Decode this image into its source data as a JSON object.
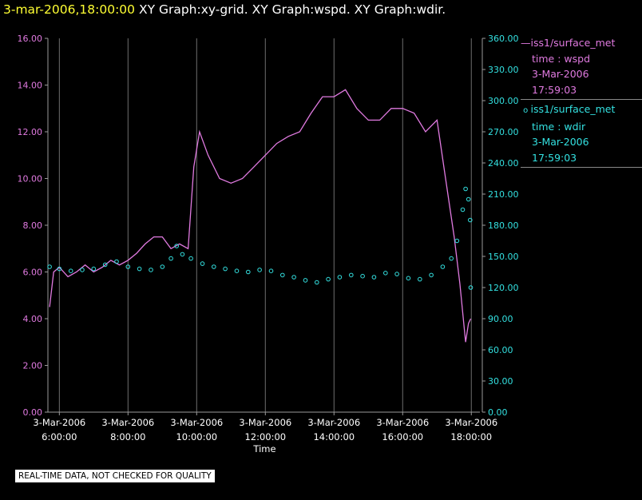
{
  "header": {
    "timestamp": "3-mar-2006,18:00:00",
    "title": "XY Graph:xy-grid.  XY Graph:wspd.  XY Graph:wdir."
  },
  "chart_data": {
    "type": "line",
    "xlabel": "Time",
    "x_range": [
      "3-Mar-2006 5:40:00",
      "3-Mar-2006 18:15:00"
    ],
    "x_ticks": [
      {
        "date": "3-Mar-2006",
        "time": "6:00:00"
      },
      {
        "date": "3-Mar-2006",
        "time": "8:00:00"
      },
      {
        "date": "3-Mar-2006",
        "time": "10:00:00"
      },
      {
        "date": "3-Mar-2006",
        "time": "12:00:00"
      },
      {
        "date": "3-Mar-2006",
        "time": "14:00:00"
      },
      {
        "date": "3-Mar-2006",
        "time": "16:00:00"
      },
      {
        "date": "3-Mar-2006",
        "time": "18:00:00"
      }
    ],
    "y_left": {
      "range": [
        0,
        16
      ],
      "ticks": [
        "0.00",
        "2.00",
        "4.00",
        "6.00",
        "8.00",
        "10.00",
        "12.00",
        "14.00",
        "16.00"
      ],
      "color": "#e07ae0"
    },
    "y_right": {
      "range": [
        0,
        360
      ],
      "ticks": [
        "0.00",
        "30.00",
        "60.00",
        "90.00",
        "120.00",
        "150.00",
        "180.00",
        "210.00",
        "240.00",
        "270.00",
        "300.00",
        "330.00",
        "360.00"
      ],
      "color": "#33e0e0"
    },
    "vertical_grid": true,
    "legend_position": "right",
    "series": [
      {
        "name": "iss1/surface_met",
        "field": "time : wspd",
        "date": "3-Mar-2006",
        "time": "17:59:03",
        "axis": "left",
        "style": "line",
        "color": "#e07ae0",
        "points": [
          [
            "5:43",
            4.5
          ],
          [
            "5:50",
            6.0
          ],
          [
            "6:00",
            6.2
          ],
          [
            "6:15",
            5.8
          ],
          [
            "6:30",
            6.0
          ],
          [
            "6:45",
            6.3
          ],
          [
            "7:00",
            6.0
          ],
          [
            "7:15",
            6.2
          ],
          [
            "7:30",
            6.5
          ],
          [
            "7:45",
            6.3
          ],
          [
            "8:00",
            6.5
          ],
          [
            "8:15",
            6.8
          ],
          [
            "8:30",
            7.2
          ],
          [
            "8:45",
            7.5
          ],
          [
            "9:00",
            7.5
          ],
          [
            "9:15",
            7.0
          ],
          [
            "9:30",
            7.2
          ],
          [
            "9:45",
            7.0
          ],
          [
            "9:55",
            10.5
          ],
          [
            "10:05",
            12.0
          ],
          [
            "10:20",
            11.0
          ],
          [
            "10:40",
            10.0
          ],
          [
            "11:00",
            9.8
          ],
          [
            "11:20",
            10.0
          ],
          [
            "11:40",
            10.5
          ],
          [
            "12:00",
            11.0
          ],
          [
            "12:20",
            11.5
          ],
          [
            "12:40",
            11.8
          ],
          [
            "13:00",
            12.0
          ],
          [
            "13:20",
            12.8
          ],
          [
            "13:40",
            13.5
          ],
          [
            "14:00",
            13.5
          ],
          [
            "14:20",
            13.8
          ],
          [
            "14:40",
            13.0
          ],
          [
            "15:00",
            12.5
          ],
          [
            "15:20",
            12.5
          ],
          [
            "15:40",
            13.0
          ],
          [
            "16:00",
            13.0
          ],
          [
            "16:20",
            12.8
          ],
          [
            "16:40",
            12.0
          ],
          [
            "17:00",
            12.5
          ],
          [
            "17:15",
            10.0
          ],
          [
            "17:30",
            7.5
          ],
          [
            "17:40",
            5.5
          ],
          [
            "17:50",
            3.0
          ],
          [
            "17:55",
            3.8
          ],
          [
            "17:59",
            4.0
          ]
        ]
      },
      {
        "name": "iss1/surface_met",
        "field": "time : wdir",
        "date": "3-Mar-2006",
        "time": "17:59:03",
        "axis": "right",
        "style": "scatter",
        "color": "#33e0e0",
        "points": [
          [
            "5:43",
            140
          ],
          [
            "6:00",
            138
          ],
          [
            "6:20",
            136
          ],
          [
            "6:40",
            137
          ],
          [
            "7:00",
            138
          ],
          [
            "7:20",
            142
          ],
          [
            "7:40",
            145
          ],
          [
            "8:00",
            140
          ],
          [
            "8:20",
            138
          ],
          [
            "8:40",
            137
          ],
          [
            "9:00",
            140
          ],
          [
            "9:15",
            148
          ],
          [
            "9:25",
            160
          ],
          [
            "9:35",
            152
          ],
          [
            "9:50",
            148
          ],
          [
            "10:10",
            143
          ],
          [
            "10:30",
            140
          ],
          [
            "10:50",
            138
          ],
          [
            "11:10",
            136
          ],
          [
            "11:30",
            135
          ],
          [
            "11:50",
            137
          ],
          [
            "12:10",
            136
          ],
          [
            "12:30",
            132
          ],
          [
            "12:50",
            130
          ],
          [
            "13:10",
            127
          ],
          [
            "13:30",
            125
          ],
          [
            "13:50",
            128
          ],
          [
            "14:10",
            130
          ],
          [
            "14:30",
            132
          ],
          [
            "14:50",
            131
          ],
          [
            "15:10",
            130
          ],
          [
            "15:30",
            134
          ],
          [
            "15:50",
            133
          ],
          [
            "16:10",
            129
          ],
          [
            "16:30",
            128
          ],
          [
            "16:50",
            132
          ],
          [
            "17:10",
            140
          ],
          [
            "17:25",
            148
          ],
          [
            "17:35",
            165
          ],
          [
            "17:45",
            195
          ],
          [
            "17:50",
            215
          ],
          [
            "17:55",
            205
          ],
          [
            "17:58",
            185
          ],
          [
            "17:59",
            120
          ]
        ]
      }
    ]
  },
  "note": "REAL-TIME DATA, NOT CHECKED FOR QUALITY"
}
